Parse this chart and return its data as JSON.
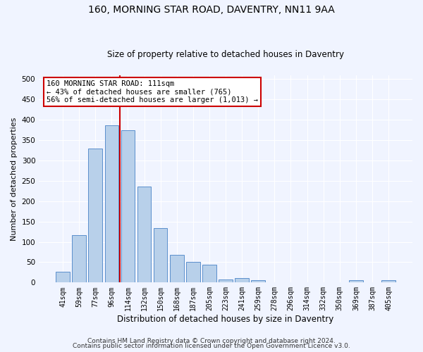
{
  "title1": "160, MORNING STAR ROAD, DAVENTRY, NN11 9AA",
  "title2": "Size of property relative to detached houses in Daventry",
  "xlabel": "Distribution of detached houses by size in Daventry",
  "ylabel": "Number of detached properties",
  "bar_labels": [
    "41sqm",
    "59sqm",
    "77sqm",
    "96sqm",
    "114sqm",
    "132sqm",
    "150sqm",
    "168sqm",
    "187sqm",
    "205sqm",
    "223sqm",
    "241sqm",
    "259sqm",
    "278sqm",
    "296sqm",
    "314sqm",
    "332sqm",
    "350sqm",
    "369sqm",
    "387sqm",
    "405sqm"
  ],
  "bar_values": [
    27,
    116,
    330,
    387,
    375,
    236,
    133,
    68,
    50,
    43,
    8,
    11,
    5,
    1,
    1,
    1,
    0,
    0,
    6,
    0,
    6
  ],
  "bar_color": "#b8d0ea",
  "bar_edge_color": "#5b8fcc",
  "vline_x": 3.5,
  "vline_color": "#cc0000",
  "annotation_text": "160 MORNING STAR ROAD: 111sqm\n← 43% of detached houses are smaller (765)\n56% of semi-detached houses are larger (1,013) →",
  "annotation_box_color": "#ffffff",
  "annotation_box_edge": "#cc0000",
  "ylim": [
    0,
    510
  ],
  "yticks": [
    0,
    50,
    100,
    150,
    200,
    250,
    300,
    350,
    400,
    450,
    500
  ],
  "footer1": "Contains HM Land Registry data © Crown copyright and database right 2024.",
  "footer2": "Contains public sector information licensed under the Open Government Licence v3.0.",
  "bg_color": "#f0f4ff",
  "plot_bg_color": "#f0f4ff",
  "title1_fontsize": 10,
  "title2_fontsize": 8.5,
  "ylabel_fontsize": 8,
  "xlabel_fontsize": 8.5,
  "tick_fontsize": 7,
  "annotation_fontsize": 7.5,
  "footer_fontsize": 6.5
}
